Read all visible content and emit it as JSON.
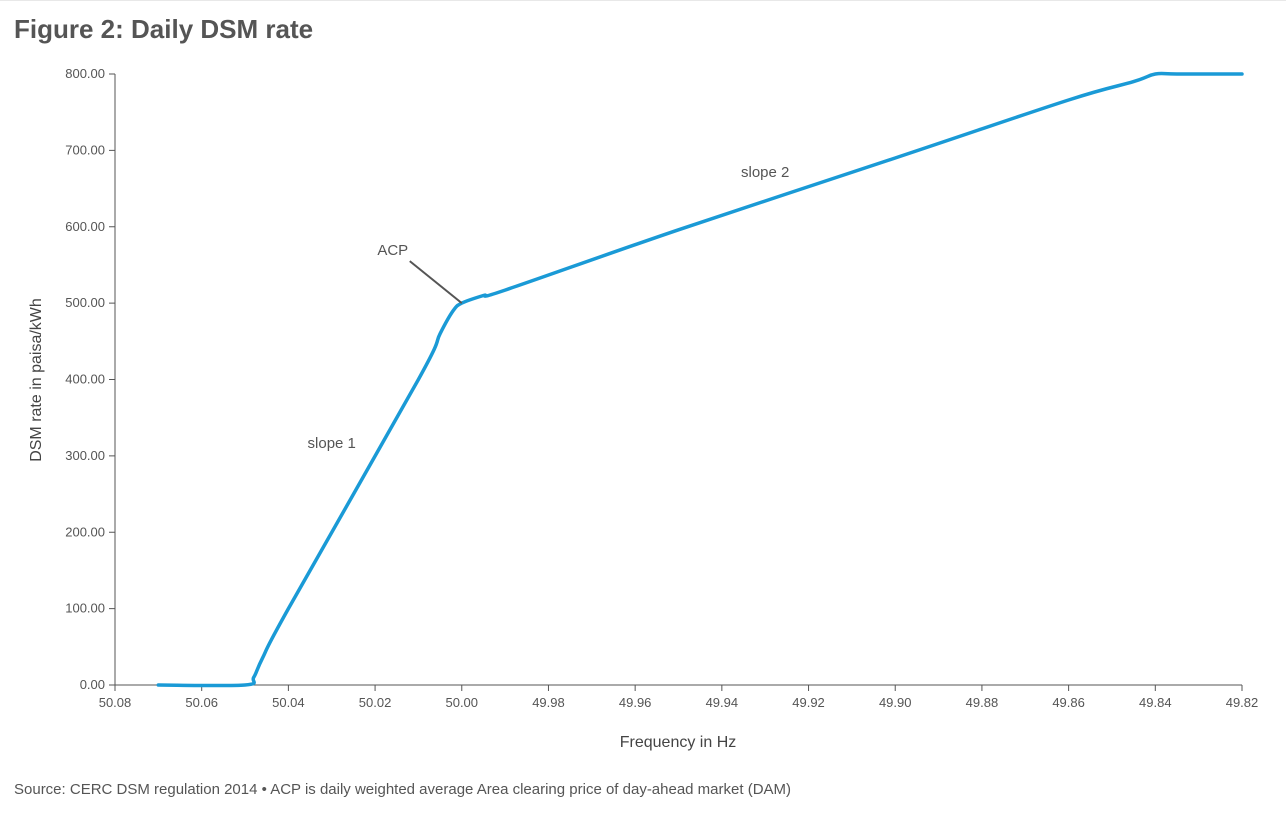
{
  "title": "Figure 2: Daily DSM rate",
  "source": "Source: CERC DSM regulation 2014 • ACP is daily weighted average Area clearing price of day-ahead market (DAM)",
  "chart_data": {
    "type": "line",
    "xlabel": "Frequency in Hz",
    "ylabel": "DSM rate in paisa/kWh",
    "x_reversed": true,
    "xlim": [
      50.08,
      49.82
    ],
    "ylim": [
      0,
      800
    ],
    "x_ticks": [
      "50.08",
      "50.06",
      "50.04",
      "50.02",
      "50.00",
      "49.98",
      "49.96",
      "49.94",
      "49.92",
      "49.90",
      "49.88",
      "49.86",
      "49.84",
      "49.82"
    ],
    "y_ticks": [
      "0.00",
      "100.00",
      "200.00",
      "300.00",
      "400.00",
      "500.00",
      "600.00",
      "700.00",
      "800.00"
    ],
    "line_color": "#1a9ad6",
    "series": [
      {
        "x": [
          50.07,
          50.05,
          50.048,
          50.046,
          50.04,
          50.01,
          50.005,
          50.002,
          50.0,
          49.995,
          49.99,
          49.95,
          49.9,
          49.86,
          49.845,
          49.84,
          49.835,
          49.82
        ],
        "values": [
          0,
          0,
          10,
          35,
          100,
          400,
          460,
          490,
          500,
          510,
          517,
          596,
          690,
          766,
          790,
          800,
          800,
          800
        ]
      }
    ],
    "annotations": [
      {
        "text": "ACP",
        "x": 50.0,
        "y": 500
      },
      {
        "text": "slope 1",
        "x": 50.03,
        "y": 310
      },
      {
        "text": "slope 2",
        "x": 49.93,
        "y": 665
      }
    ],
    "grid": false,
    "legend": "none"
  }
}
